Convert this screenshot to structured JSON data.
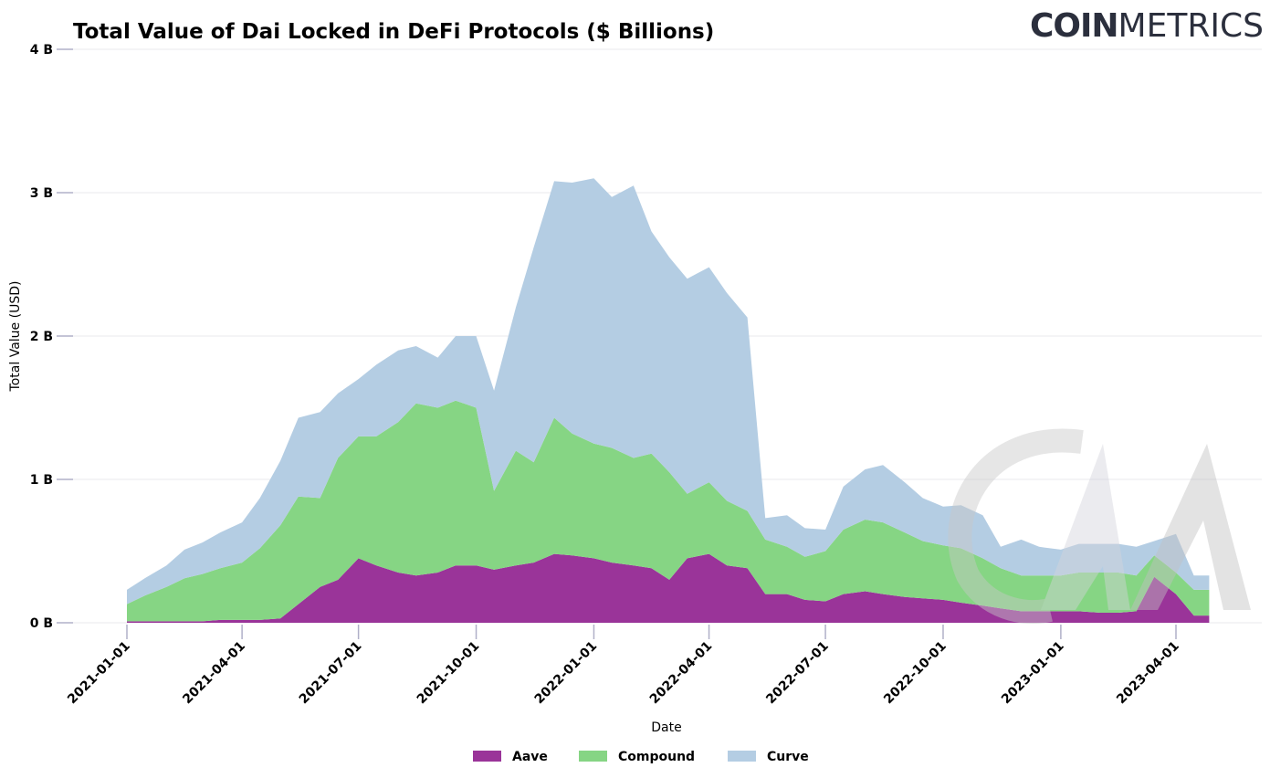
{
  "brand": {
    "part1": "COIN",
    "part2": "METRICS"
  },
  "colors": {
    "aave": "#9a3499",
    "compound": "#86d584",
    "curve": "#b4cde3",
    "grid": "#e8e8ee",
    "tick": "#b0b0c8"
  },
  "chart_data": {
    "type": "area",
    "stacked": true,
    "title": "Total Value of Dai Locked in DeFi Protocols ($ Billions)",
    "xlabel": "Date",
    "ylabel": "Total Value (USD)",
    "ylim": [
      0,
      4
    ],
    "y_ticks": [
      0,
      1,
      2,
      3,
      4
    ],
    "y_tick_labels": [
      "0 B",
      "1 B",
      "2 B",
      "3 B",
      "4 B"
    ],
    "x_range": [
      "2021-01-01",
      "2023-05-01"
    ],
    "x_tick_labels": [
      "2021-01-01",
      "2021-04-01",
      "2021-07-01",
      "2021-10-01",
      "2022-01-01",
      "2022-04-01",
      "2022-07-01",
      "2022-10-01",
      "2023-01-01",
      "2023-04-01"
    ],
    "grid": "horizontal",
    "legend_position": "bottom-center",
    "x": [
      "2021-01-01",
      "2021-01-15",
      "2021-02-01",
      "2021-02-15",
      "2021-03-01",
      "2021-03-15",
      "2021-04-01",
      "2021-04-15",
      "2021-05-01",
      "2021-05-15",
      "2021-06-01",
      "2021-06-15",
      "2021-07-01",
      "2021-07-15",
      "2021-08-01",
      "2021-08-15",
      "2021-09-01",
      "2021-09-15",
      "2021-10-01",
      "2021-10-15",
      "2021-11-01",
      "2021-11-15",
      "2021-12-01",
      "2021-12-15",
      "2022-01-01",
      "2022-01-15",
      "2022-02-01",
      "2022-02-15",
      "2022-03-01",
      "2022-03-15",
      "2022-04-01",
      "2022-04-15",
      "2022-05-01",
      "2022-05-15",
      "2022-06-01",
      "2022-06-15",
      "2022-07-01",
      "2022-07-15",
      "2022-08-01",
      "2022-08-15",
      "2022-09-01",
      "2022-09-15",
      "2022-10-01",
      "2022-10-15",
      "2022-11-01",
      "2022-11-15",
      "2022-12-01",
      "2022-12-15",
      "2023-01-01",
      "2023-01-15",
      "2023-02-01",
      "2023-02-15",
      "2023-03-01",
      "2023-03-15",
      "2023-04-01",
      "2023-04-15"
    ],
    "series": [
      {
        "name": "Aave",
        "values": [
          0.01,
          0.01,
          0.01,
          0.01,
          0.01,
          0.02,
          0.02,
          0.02,
          0.03,
          0.13,
          0.25,
          0.3,
          0.45,
          0.4,
          0.35,
          0.33,
          0.35,
          0.4,
          0.4,
          0.37,
          0.4,
          0.42,
          0.48,
          0.47,
          0.45,
          0.42,
          0.4,
          0.38,
          0.3,
          0.45,
          0.48,
          0.4,
          0.38,
          0.2,
          0.2,
          0.16,
          0.15,
          0.2,
          0.22,
          0.2,
          0.18,
          0.17,
          0.16,
          0.14,
          0.12,
          0.1,
          0.08,
          0.08,
          0.08,
          0.08,
          0.07,
          0.07,
          0.08,
          0.32,
          0.2,
          0.05
        ]
      },
      {
        "name": "Compound",
        "values": [
          0.12,
          0.18,
          0.24,
          0.3,
          0.33,
          0.36,
          0.4,
          0.5,
          0.65,
          0.75,
          0.62,
          0.85,
          0.85,
          0.9,
          1.05,
          1.2,
          1.15,
          1.15,
          1.1,
          0.55,
          0.8,
          0.7,
          0.95,
          0.85,
          0.8,
          0.8,
          0.75,
          0.8,
          0.75,
          0.45,
          0.5,
          0.45,
          0.4,
          0.38,
          0.33,
          0.3,
          0.35,
          0.45,
          0.5,
          0.5,
          0.45,
          0.4,
          0.38,
          0.38,
          0.33,
          0.28,
          0.25,
          0.25,
          0.25,
          0.27,
          0.28,
          0.28,
          0.25,
          0.15,
          0.15,
          0.18
        ]
      },
      {
        "name": "Curve",
        "values": [
          0.1,
          0.12,
          0.15,
          0.2,
          0.22,
          0.25,
          0.28,
          0.35,
          0.45,
          0.55,
          0.6,
          0.45,
          0.4,
          0.5,
          0.5,
          0.4,
          0.35,
          0.45,
          0.5,
          0.7,
          1.0,
          1.5,
          1.65,
          1.75,
          1.85,
          1.75,
          1.9,
          1.55,
          1.5,
          1.5,
          1.5,
          1.45,
          1.35,
          0.15,
          0.22,
          0.2,
          0.15,
          0.3,
          0.35,
          0.4,
          0.35,
          0.3,
          0.27,
          0.3,
          0.3,
          0.15,
          0.25,
          0.2,
          0.18,
          0.2,
          0.2,
          0.2,
          0.2,
          0.1,
          0.27,
          0.1
        ]
      }
    ]
  }
}
